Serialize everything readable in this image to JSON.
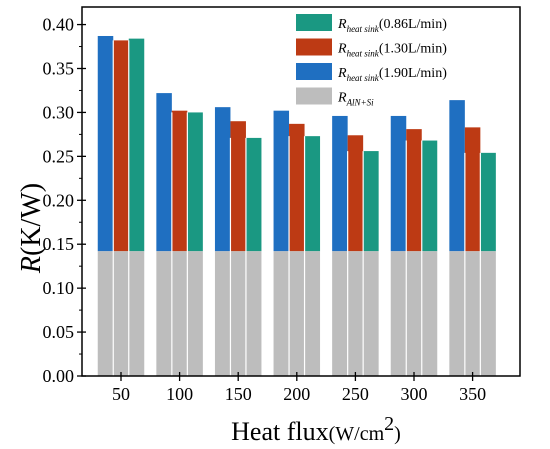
{
  "chart_data": {
    "type": "bar",
    "stacked": true,
    "xlabel": "Heat flux",
    "xlabel_unit": "(W/cm",
    "xlabel_unit_exp": "2",
    "xlabel_unit_close": ")",
    "ylabel": "R",
    "ylabel_unit": "(K/W)",
    "ylim": [
      0.0,
      0.42
    ],
    "yticks": [
      "0.00",
      "0.05",
      "0.10",
      "0.15",
      "0.20",
      "0.25",
      "0.30",
      "0.35",
      "0.40"
    ],
    "categories": [
      "50",
      "100",
      "150",
      "200",
      "250",
      "300",
      "350"
    ],
    "base_series": {
      "name_main": "R",
      "name_sub": "AlN+Si",
      "color": "#bdbdbd",
      "values": [
        0.142,
        0.142,
        0.142,
        0.142,
        0.142,
        0.142,
        0.142
      ]
    },
    "series": [
      {
        "name_main": "R",
        "name_sub": "heat sink",
        "name_flow": "(1.90L/min)",
        "color": "#1f6fc1",
        "totals": [
          0.387,
          0.322,
          0.306,
          0.302,
          0.296,
          0.296,
          0.314
        ]
      },
      {
        "name_main": "R",
        "name_sub": "heat sink",
        "name_flow": "(1.30L/min)",
        "color": "#bd3a14",
        "totals": [
          0.382,
          0.302,
          0.29,
          0.287,
          0.274,
          0.281,
          0.283
        ]
      },
      {
        "name_main": "R",
        "name_sub": "heat sink",
        "name_flow": "(0.86L/min)",
        "color": "#1a9882",
        "totals": [
          0.384,
          0.3,
          0.271,
          0.273,
          0.256,
          0.268,
          0.254
        ]
      }
    ],
    "legend": {
      "placement": "top-right",
      "order": [
        2,
        1,
        0,
        "base"
      ]
    },
    "grid": false
  }
}
